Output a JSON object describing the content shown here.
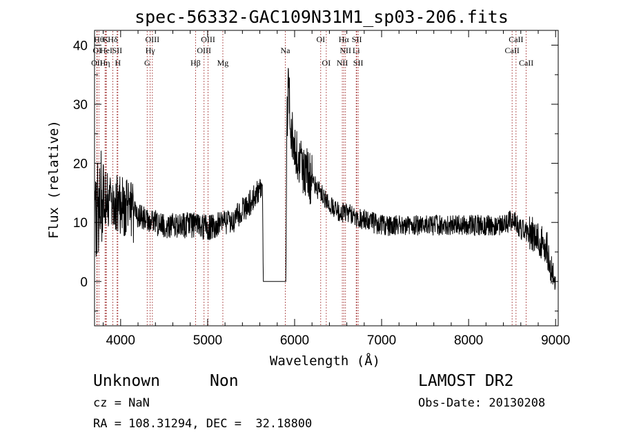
{
  "chart_data": {
    "type": "line",
    "title": "spec-56332-GAC109N31M1_sp03-206.fits",
    "xlabel": "Wavelength (Å)",
    "ylabel": "Flux (relative)",
    "xlim": [
      3700,
      9030
    ],
    "ylim": [
      -7.5,
      42.5
    ],
    "x_ticks": [
      "4000",
      "5000",
      "6000",
      "7000",
      "8000",
      "9000"
    ],
    "y_ticks": [
      "0",
      "10",
      "20",
      "30",
      "40"
    ],
    "line_color": "#000000",
    "marker_color": "#a33333",
    "spectrum_shape": {
      "x": [
        3700,
        3750,
        3800,
        3850,
        3900,
        4000,
        4100,
        4200,
        4300,
        4400,
        4500,
        4600,
        4700,
        4800,
        4900,
        5000,
        5100,
        5200,
        5300,
        5400,
        5500,
        5600,
        5630,
        5640,
        5900,
        5910,
        5930,
        5950,
        6000,
        6100,
        6200,
        6300,
        6400,
        6500,
        6600,
        6700,
        6800,
        7000,
        7200,
        7400,
        7600,
        7800,
        8000,
        8200,
        8400,
        8500,
        8600,
        8800,
        8900,
        9000
      ],
      "y": [
        10,
        13,
        15,
        14,
        13,
        13,
        12,
        11,
        10.5,
        10,
        9.5,
        9.5,
        9.5,
        9.5,
        9.5,
        9,
        9.5,
        10,
        10.5,
        12,
        13.5,
        15.5,
        16,
        0,
        0,
        25,
        36,
        28,
        22,
        19,
        17,
        15,
        13,
        12,
        11.5,
        11,
        10.5,
        9.5,
        9.5,
        9.5,
        9.5,
        9.5,
        9.5,
        9.5,
        9.5,
        10.5,
        9,
        7.5,
        5.5,
        -1
      ]
    },
    "lines_row1": [
      {
        "x": 3750,
        "label": "Hθ"
      },
      {
        "x": 3830,
        "label": "K"
      },
      {
        "x": 3910,
        "label": "Hδ"
      },
      {
        "x": 4365,
        "label": "OIII"
      },
      {
        "x": 5005,
        "label": "OIII"
      },
      {
        "x": 6300,
        "label": "OI"
      },
      {
        "x": 6565,
        "label": "Hα"
      },
      {
        "x": 6715,
        "label": "SII"
      },
      {
        "x": 8545,
        "label": "CaII"
      }
    ],
    "lines_row2": [
      {
        "x": 3730,
        "label": "OI"
      },
      {
        "x": 3835,
        "label": "HeI"
      },
      {
        "x": 3960,
        "label": "SII"
      },
      {
        "x": 4340,
        "label": "Hγ"
      },
      {
        "x": 4959,
        "label": "OIII"
      },
      {
        "x": 5893,
        "label": "Na"
      },
      {
        "x": 6585,
        "label": "NII"
      },
      {
        "x": 6708,
        "label": "Li"
      },
      {
        "x": 8500,
        "label": "CaII"
      }
    ],
    "lines_row3": [
      {
        "x": 3727,
        "label": "OII"
      },
      {
        "x": 3820,
        "label": "Hη"
      },
      {
        "x": 3968,
        "label": "H"
      },
      {
        "x": 4305,
        "label": "G"
      },
      {
        "x": 4861,
        "label": "Hβ"
      },
      {
        "x": 5175,
        "label": "Mg"
      },
      {
        "x": 6364,
        "label": "OI"
      },
      {
        "x": 6548,
        "label": "NII"
      },
      {
        "x": 6731,
        "label": "SII"
      },
      {
        "x": 8662,
        "label": "CaII"
      }
    ]
  },
  "info": {
    "class": "Unknown",
    "subclass": "Non",
    "cz": "cz = NaN",
    "coords": "RA = 108.31294, DEC =  32.18800",
    "survey": "LAMOST DR2",
    "obs_date": "Obs-Date: 20130208"
  }
}
